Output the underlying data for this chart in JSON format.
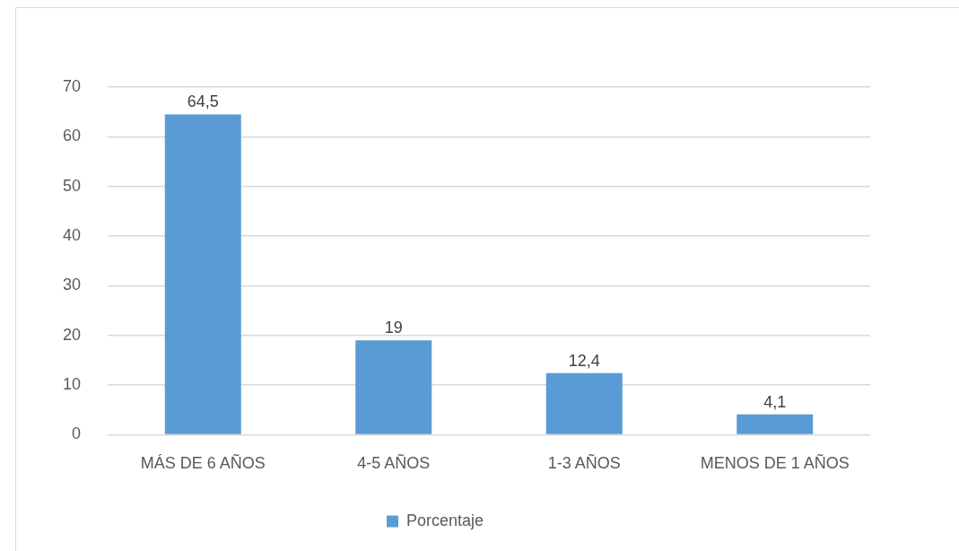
{
  "chart_data": {
    "type": "bar",
    "categories": [
      "MÁS DE 6 AÑOS",
      "4-5 AÑOS",
      "1-3 AÑOS",
      "MENOS DE 1 AÑOS"
    ],
    "series": [
      {
        "name": "Porcentaje",
        "color": "#5b9bd5",
        "values": [
          64.5,
          19,
          12.4,
          4.1
        ],
        "value_labels": [
          "64,5",
          "19",
          "12,4",
          "4,1"
        ]
      }
    ],
    "ylim": [
      0,
      70
    ],
    "yticks": [
      0,
      10,
      20,
      30,
      40,
      50,
      60,
      70
    ],
    "grid": "y",
    "legend": "bottom"
  }
}
